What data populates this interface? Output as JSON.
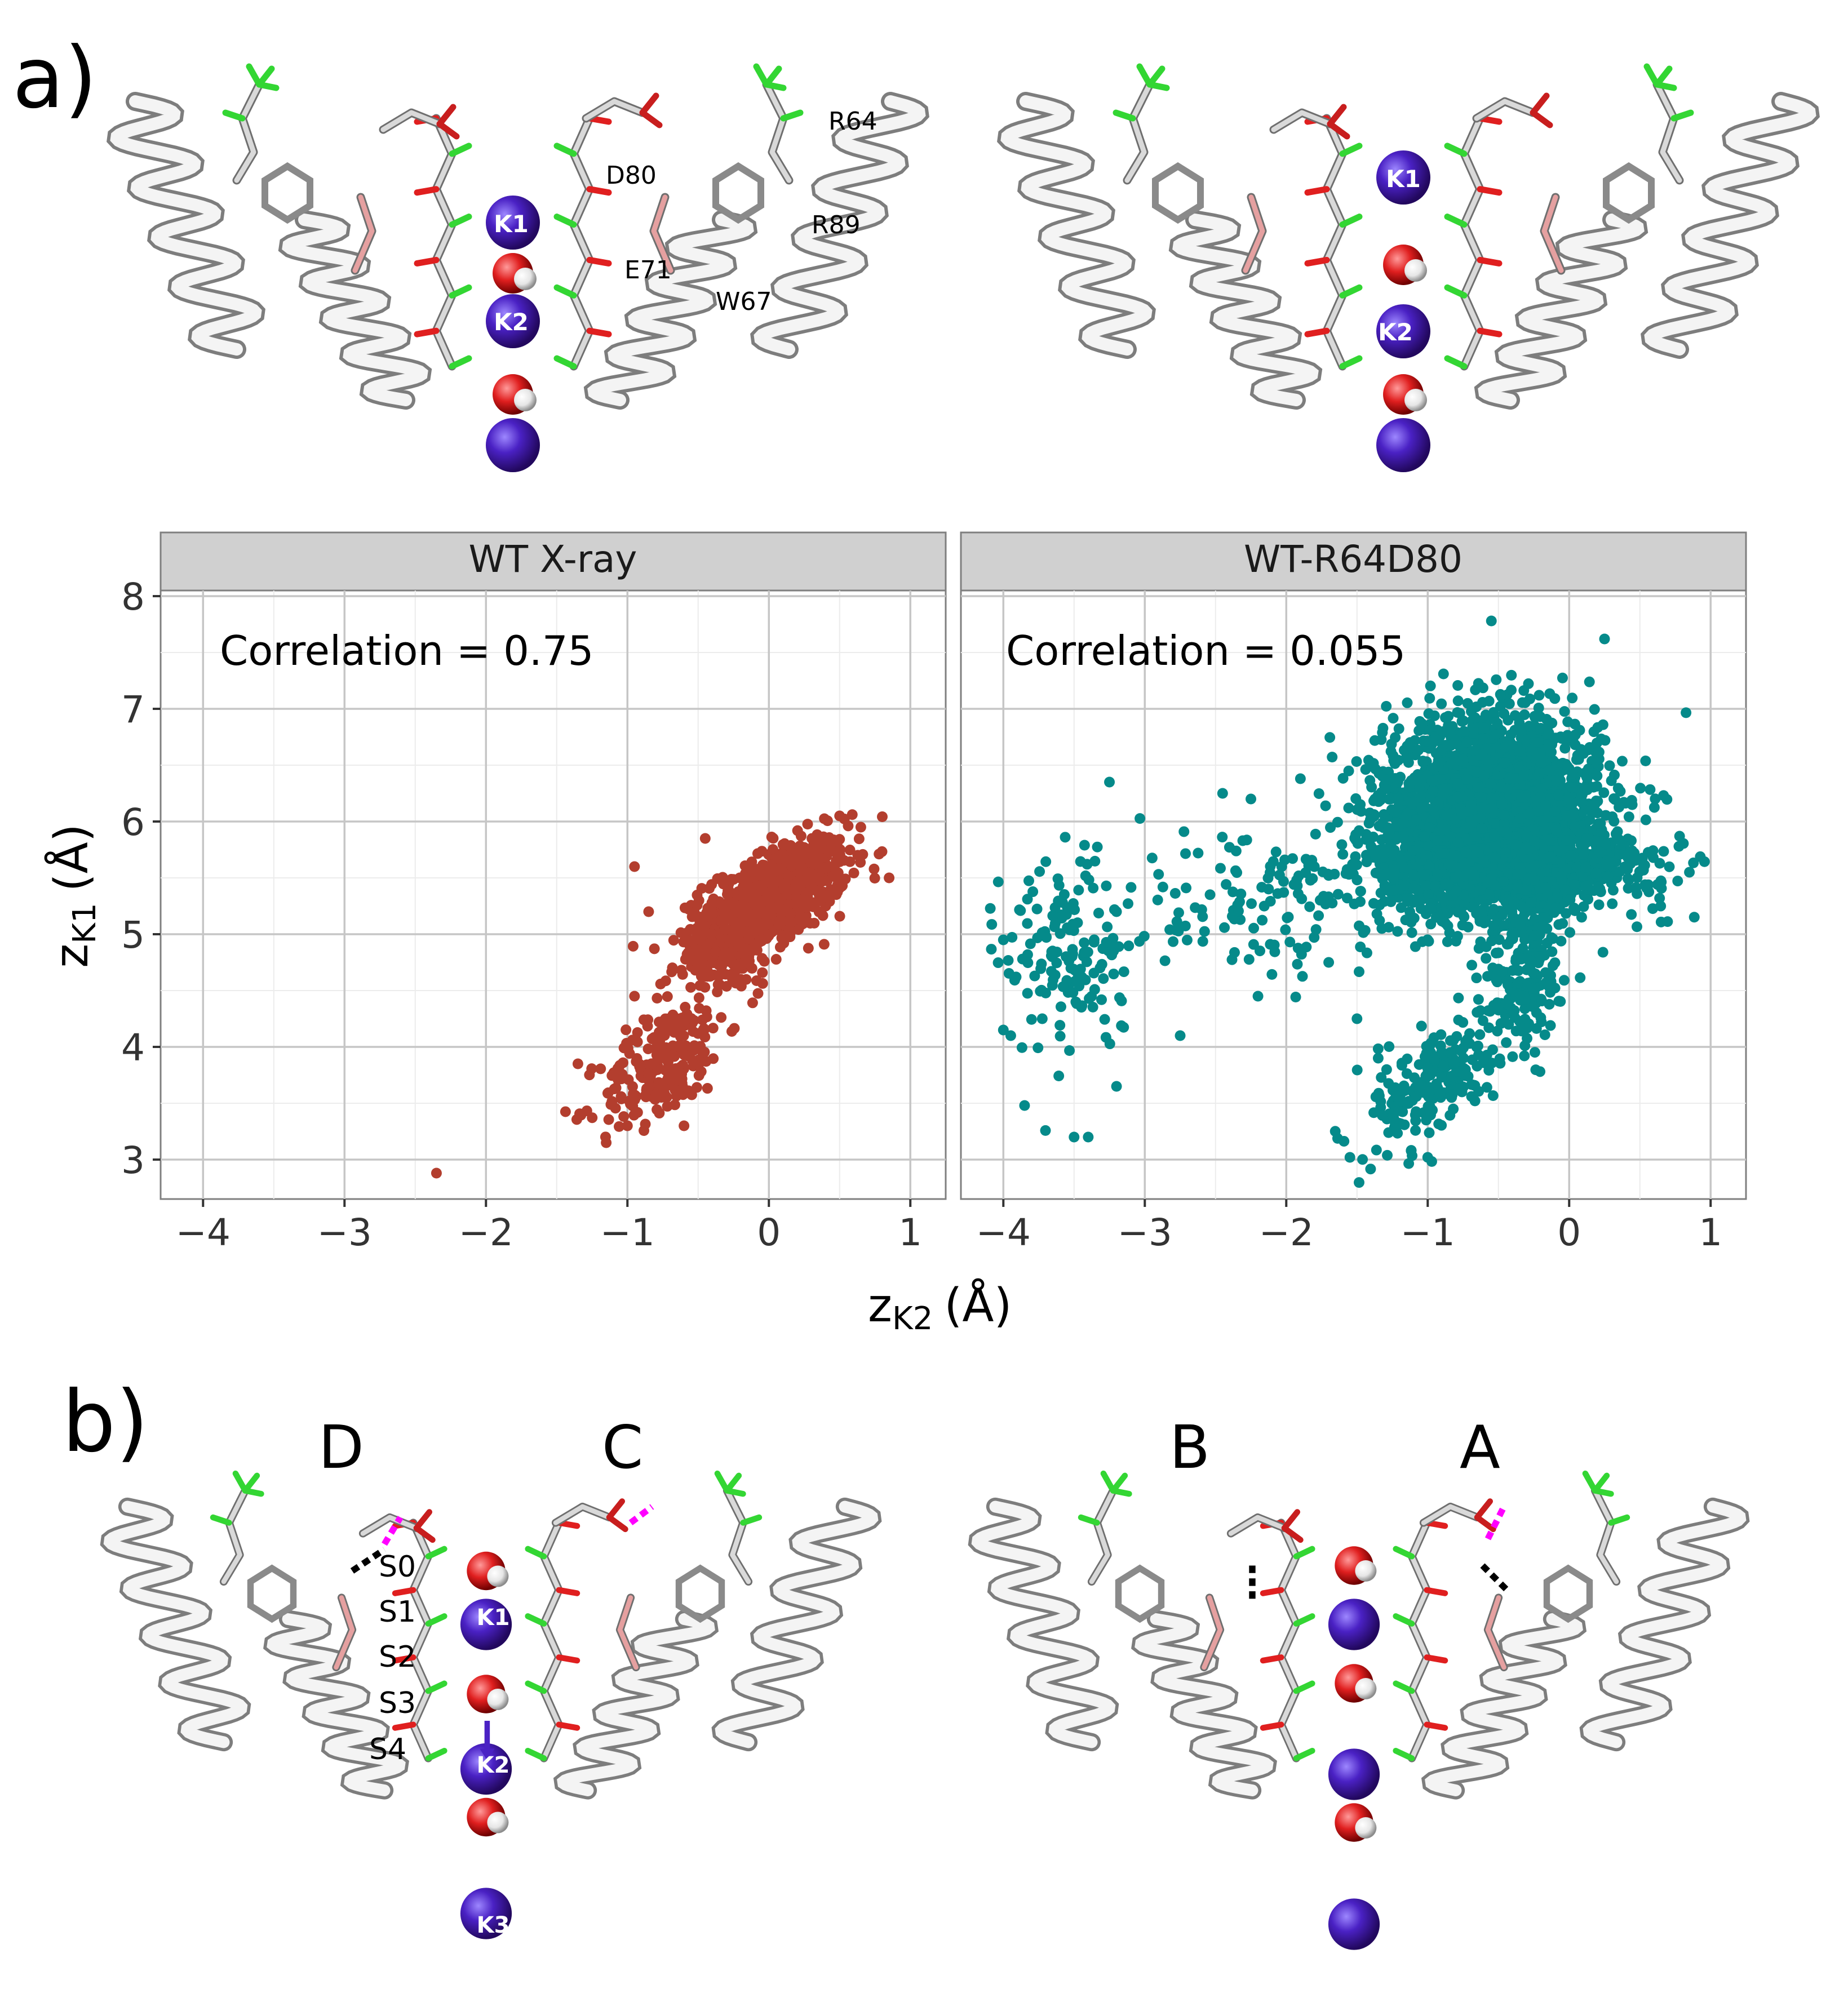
{
  "figure": {
    "panel_a_tag": "a)",
    "panel_b_tag": "b)"
  },
  "structures_a": {
    "left": {
      "residue_labels": [
        "R64",
        "D80",
        "R89",
        "E71",
        "W67"
      ],
      "ion_labels": [
        "K1",
        "K2"
      ]
    },
    "right": {
      "ion_labels": [
        "K1",
        "K2"
      ]
    }
  },
  "structures_b": {
    "subunit_labels": [
      "D",
      "C",
      "B",
      "A"
    ],
    "site_labels": [
      "S0",
      "S1",
      "S2",
      "S3",
      "S4"
    ],
    "ion_labels": [
      "K1",
      "K2",
      "K3"
    ]
  },
  "colors": {
    "wt_xray": "#b33e2e",
    "wt_r64d80": "#058a8a",
    "strip_fill": "#d0d0d0",
    "grid": "#c6c6c6",
    "potassium": "#4a21c4",
    "oxygen": "#e01f1f",
    "hydrogen": "#f0f0f0",
    "carbon_green": "#33d633",
    "backbone": "#e6e6e6",
    "hbond_black": "#000000",
    "hbond_magenta": "#ff00ff"
  },
  "chart_data": {
    "type": "scatter",
    "xlabel_main": "z",
    "xlabel_sub": "K2",
    "xlabel_unit": "(Å)",
    "ylabel_main": "z",
    "ylabel_sub": "K1",
    "ylabel_unit": "(Å)",
    "xlim": [
      -4.3,
      1.25
    ],
    "ylim": [
      2.65,
      8.05
    ],
    "xticks": [
      -4,
      -3,
      -2,
      -1,
      0,
      1
    ],
    "xtick_labels": [
      "−4",
      "−3",
      "−2",
      "−1",
      "0",
      "1"
    ],
    "yticks": [
      3,
      4,
      5,
      6,
      7,
      8
    ],
    "ytick_labels": [
      "3",
      "4",
      "5",
      "6",
      "7",
      "8"
    ],
    "grid": true,
    "facets": [
      {
        "name": "WT X-ray",
        "annotation": "Correlation = 0.75",
        "color": "#b33e2e",
        "clusters": [
          {
            "cx": 0.05,
            "cy": 5.35,
            "sx": 0.25,
            "sy": 0.25,
            "rho": 0.55,
            "n": 700
          },
          {
            "cx": -0.3,
            "cy": 4.9,
            "sx": 0.2,
            "sy": 0.25,
            "rho": 0.4,
            "n": 220
          },
          {
            "cx": -0.75,
            "cy": 3.85,
            "sx": 0.22,
            "sy": 0.28,
            "rho": 0.55,
            "n": 230
          }
        ],
        "points": [
          {
            "x": -2.35,
            "y": 2.88
          },
          {
            "x": 0.85,
            "y": 5.5
          },
          {
            "x": 0.65,
            "y": 5.95
          },
          {
            "x": 0.5,
            "y": 6.05
          },
          {
            "x": -1.15,
            "y": 3.15
          },
          {
            "x": -1.35,
            "y": 3.85
          },
          {
            "x": -0.95,
            "y": 4.45
          },
          {
            "x": -0.95,
            "y": 5.6
          },
          {
            "x": -0.85,
            "y": 5.2
          },
          {
            "x": -0.45,
            "y": 5.85
          },
          {
            "x": -1.0,
            "y": 3.3
          },
          {
            "x": -0.6,
            "y": 3.3
          }
        ]
      },
      {
        "name": "WT-R64D80",
        "annotation": "Correlation = 0.055",
        "color": "#058a8a",
        "clusters": [
          {
            "cx": -0.55,
            "cy": 6.05,
            "sx": 0.38,
            "sy": 0.42,
            "rho": 0.0,
            "n": 2800
          },
          {
            "cx": -0.4,
            "cy": 5.6,
            "sx": 0.55,
            "sy": 0.18,
            "rho": 0.0,
            "n": 700
          },
          {
            "cx": -0.95,
            "cy": 3.7,
            "sx": 0.22,
            "sy": 0.3,
            "rho": 0.55,
            "n": 220
          },
          {
            "cx": -0.3,
            "cy": 4.6,
            "sx": 0.12,
            "sy": 0.35,
            "rho": 0.1,
            "n": 160
          },
          {
            "cx": -3.55,
            "cy": 4.85,
            "sx": 0.22,
            "sy": 0.45,
            "rho": 0.0,
            "n": 150
          },
          {
            "cx": -2.3,
            "cy": 5.3,
            "sx": 0.55,
            "sy": 0.3,
            "rho": 0.0,
            "n": 120
          }
        ],
        "points": [
          {
            "x": -0.55,
            "y": 7.78
          },
          {
            "x": 0.25,
            "y": 7.62
          },
          {
            "x": -4.0,
            "y": 4.15
          },
          {
            "x": -4.0,
            "y": 4.95
          },
          {
            "x": -3.85,
            "y": 3.48
          },
          {
            "x": -3.4,
            "y": 3.2
          },
          {
            "x": -3.5,
            "y": 3.2
          },
          {
            "x": -3.2,
            "y": 3.65
          },
          {
            "x": -3.25,
            "y": 6.35
          },
          {
            "x": -2.45,
            "y": 6.25
          },
          {
            "x": -2.25,
            "y": 6.2
          },
          {
            "x": -1.9,
            "y": 6.38
          },
          {
            "x": -1.55,
            "y": 3.02
          },
          {
            "x": -1.0,
            "y": 3.02
          },
          {
            "x": 0.85,
            "y": 5.55
          },
          {
            "x": -1.5,
            "y": 4.25
          },
          {
            "x": -1.35,
            "y": 3.9
          },
          {
            "x": -2.75,
            "y": 4.1
          },
          {
            "x": -2.2,
            "y": 4.45
          },
          {
            "x": -3.2,
            "y": 5.2
          },
          {
            "x": -1.7,
            "y": 4.75
          }
        ]
      }
    ]
  }
}
